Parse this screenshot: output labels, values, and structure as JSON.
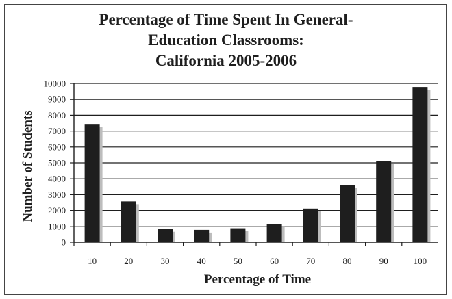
{
  "chart_data": {
    "type": "bar",
    "title_lines": [
      "Percentage of Time Spent In General-",
      "Education Classrooms:",
      "California 2005-2006"
    ],
    "xlabel": "Percentage of Time",
    "ylabel": "Number of Students",
    "categories": [
      "10",
      "20",
      "30",
      "40",
      "50",
      "60",
      "70",
      "80",
      "90",
      "100"
    ],
    "values": [
      7450,
      2570,
      830,
      780,
      880,
      1160,
      2120,
      3580,
      5120,
      9780
    ],
    "ylim": [
      0,
      10000
    ],
    "yticks": [
      "0",
      "1000",
      "2000",
      "3000",
      "4000",
      "5000",
      "6000",
      "7000",
      "8000",
      "9000",
      "10000"
    ],
    "grid": true,
    "legend": "none",
    "colors": {
      "bar": "#1e1e1e",
      "shadow": "#bdbdbd",
      "grid": "#1e1e1e"
    }
  }
}
